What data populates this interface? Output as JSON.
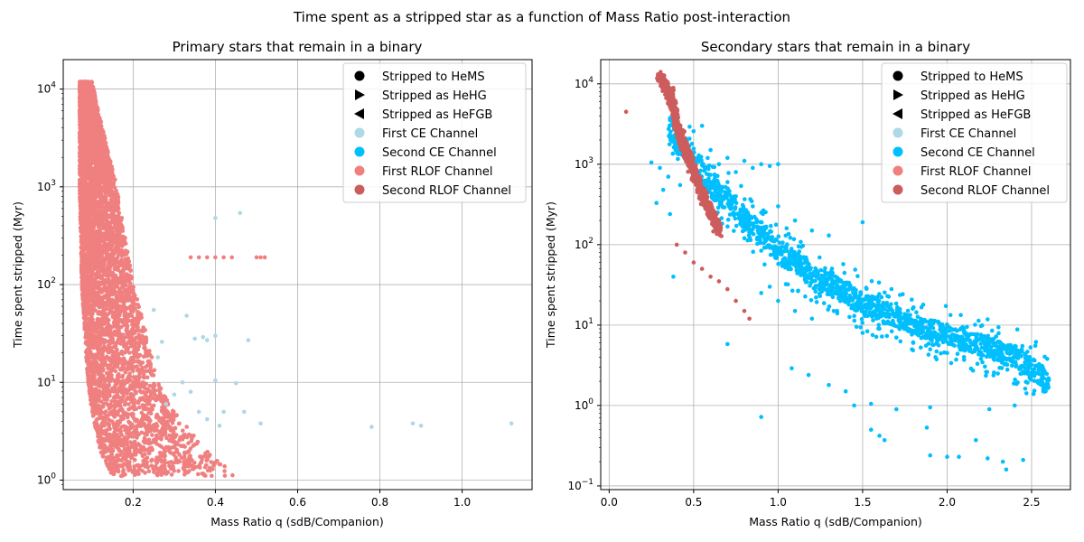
{
  "figure": {
    "suptitle": "Time spent as a stripped star as a function of Mass Ratio post-interaction"
  },
  "colors": {
    "first_ce": "#add8e6",
    "second_ce": "#00bfff",
    "first_rlof": "#f08080",
    "second_rlof": "#cd5c5c",
    "grid": "#b0b0b0",
    "legend_border": "#cccccc"
  },
  "legend": {
    "entries": [
      {
        "label": "Stripped to HeMS",
        "marker": "circle",
        "color": "#000000"
      },
      {
        "label": "Stripped as HeHG",
        "marker": "triangle-right",
        "color": "#000000"
      },
      {
        "label": "Stripped as HeFGB",
        "marker": "triangle-left",
        "color": "#000000"
      },
      {
        "label": "First CE Channel",
        "marker": "circle",
        "color": "#add8e6"
      },
      {
        "label": "Second CE Channel",
        "marker": "circle",
        "color": "#00bfff"
      },
      {
        "label": "First RLOF Channel",
        "marker": "circle",
        "color": "#f08080"
      },
      {
        "label": "Second RLOF Channel",
        "marker": "circle",
        "color": "#cd5c5c"
      }
    ],
    "placement": "top-right"
  },
  "chart_data": [
    {
      "type": "scatter",
      "title": "Primary stars that remain in a binary",
      "xlabel": "Mass Ratio q (sdB/Companion)",
      "ylabel": "Time spent stripped (Myr)",
      "xscale": "linear",
      "yscale": "log",
      "xlim": [
        0.03,
        1.17
      ],
      "ylim": [
        0.8,
        20000
      ],
      "xticks": [
        0.2,
        0.4,
        0.6,
        0.8,
        1.0
      ],
      "xtick_labels": [
        "0.2",
        "0.4",
        "0.6",
        "0.8",
        "1.0"
      ],
      "yticks": [
        1,
        10,
        100,
        1000,
        10000
      ],
      "ytick_labels": [
        "10^0",
        "10^1",
        "10^2",
        "10^3",
        "10^4"
      ],
      "grid": true,
      "series": [
        {
          "name": "First RLOF Channel",
          "color": "#f08080",
          "band": {
            "note": "dense cloud of several thousand points",
            "y_range": [
              1.1,
              12000
            ],
            "q_at_y": [
              [
                1.1,
                0.15,
                0.45
              ],
              [
                2,
                0.12,
                0.38
              ],
              [
                5,
                0.1,
                0.3
              ],
              [
                10,
                0.09,
                0.26
              ],
              [
                50,
                0.08,
                0.22
              ],
              [
                100,
                0.075,
                0.2
              ],
              [
                1000,
                0.07,
                0.16
              ],
              [
                5000,
                0.07,
                0.12
              ],
              [
                12000,
                0.07,
                0.1
              ]
            ]
          },
          "points": [
            [
              0.34,
              190
            ],
            [
              0.36,
              190
            ],
            [
              0.38,
              190
            ],
            [
              0.4,
              190
            ],
            [
              0.42,
              190
            ],
            [
              0.44,
              190
            ],
            [
              0.5,
              190
            ],
            [
              0.51,
              190
            ],
            [
              0.52,
              190
            ]
          ]
        },
        {
          "name": "First CE Channel",
          "color": "#add8e6",
          "points": [
            [
              0.4,
              480
            ],
            [
              0.46,
              540
            ],
            [
              0.33,
              48
            ],
            [
              0.35,
              28
            ],
            [
              0.37,
              29
            ],
            [
              0.38,
              27
            ],
            [
              0.4,
              30
            ],
            [
              0.48,
              27
            ],
            [
              0.32,
              10
            ],
            [
              0.4,
              10.5
            ],
            [
              0.45,
              9.8
            ],
            [
              0.3,
              7.5
            ],
            [
              0.34,
              8
            ],
            [
              0.36,
              5
            ],
            [
              0.38,
              4.2
            ],
            [
              0.41,
              3.6
            ],
            [
              0.42,
              5
            ],
            [
              0.47,
              5
            ],
            [
              0.51,
              3.8
            ],
            [
              0.78,
              3.5
            ],
            [
              0.88,
              3.8
            ],
            [
              0.9,
              3.6
            ],
            [
              1.12,
              3.8
            ],
            [
              0.28,
              6
            ],
            [
              0.26,
              18
            ],
            [
              0.27,
              26
            ],
            [
              0.25,
              55
            ]
          ]
        }
      ]
    },
    {
      "type": "scatter",
      "title": "Secondary stars that remain in a binary",
      "xlabel": "Mass Ratio q (sdB/Companion)",
      "ylabel": "Time spent stripped (Myr)",
      "xscale": "linear",
      "yscale": "log",
      "xlim": [
        -0.05,
        2.73
      ],
      "ylim": [
        0.09,
        20000
      ],
      "xticks": [
        0.0,
        0.5,
        1.0,
        1.5,
        2.0,
        2.5
      ],
      "xtick_labels": [
        "0.0",
        "0.5",
        "1.0",
        "1.5",
        "2.0",
        "2.5"
      ],
      "yticks": [
        0.1,
        1,
        10,
        100,
        1000,
        10000
      ],
      "ytick_labels": [
        "10^-1",
        "10^0",
        "10^1",
        "10^2",
        "10^3",
        "10^4"
      ],
      "grid": true,
      "series": [
        {
          "name": "Second CE Channel",
          "color": "#00bfff",
          "band": {
            "note": "main track falling from ~1000 Myr at q~0.4 to ~2 Myr at q~2.6",
            "track": [
              [
                0.35,
                3000
              ],
              [
                0.45,
                1500
              ],
              [
                0.6,
                500
              ],
              [
                0.8,
                200
              ],
              [
                1.0,
                80
              ],
              [
                1.2,
                40
              ],
              [
                1.5,
                18
              ],
              [
                1.8,
                10
              ],
              [
                2.1,
                6.5
              ],
              [
                2.4,
                4
              ],
              [
                2.6,
                1.8
              ]
            ]
          },
          "points": [
            [
              0.25,
              1050
            ],
            [
              0.3,
              900
            ],
            [
              0.35,
              700
            ],
            [
              0.42,
              550
            ],
            [
              0.32,
              480
            ],
            [
              0.28,
              330
            ],
            [
              0.36,
              240
            ],
            [
              0.38,
              40
            ],
            [
              0.55,
              3000
            ],
            [
              0.6,
              1500
            ],
            [
              0.65,
              1000
            ],
            [
              0.7,
              1200
            ],
            [
              0.75,
              800
            ],
            [
              0.8,
              1100
            ],
            [
              0.85,
              900
            ],
            [
              0.9,
              1000
            ],
            [
              0.95,
              950
            ],
            [
              1.0,
              1000
            ],
            [
              0.7,
              600
            ],
            [
              0.75,
              400
            ],
            [
              0.85,
              300
            ],
            [
              0.9,
              250
            ],
            [
              1.0,
              300
            ],
            [
              1.05,
              160
            ],
            [
              1.1,
              200
            ],
            [
              1.2,
              150
            ],
            [
              1.3,
              130
            ],
            [
              1.5,
              190
            ],
            [
              0.9,
              25
            ],
            [
              0.95,
              30
            ],
            [
              1.0,
              20
            ],
            [
              1.1,
              15
            ],
            [
              1.2,
              12
            ],
            [
              1.35,
              14
            ],
            [
              1.45,
              13
            ],
            [
              1.5,
              8
            ],
            [
              1.6,
              9
            ],
            [
              1.7,
              7
            ],
            [
              1.8,
              6
            ],
            [
              1.9,
              5
            ],
            [
              2.0,
              4.5
            ],
            [
              2.1,
              4
            ],
            [
              2.2,
              3.8
            ],
            [
              2.3,
              2.5
            ],
            [
              2.5,
              3.2
            ],
            [
              2.6,
              1.7
            ],
            [
              0.7,
              5.8
            ],
            [
              1.08,
              2.9
            ],
            [
              1.18,
              2.4
            ],
            [
              1.3,
              1.8
            ],
            [
              1.4,
              1.5
            ],
            [
              1.45,
              1.0
            ],
            [
              1.55,
              1.05
            ],
            [
              1.7,
              0.9
            ],
            [
              1.9,
              0.95
            ],
            [
              2.25,
              0.9
            ],
            [
              2.4,
              1.0
            ],
            [
              0.9,
              0.72
            ],
            [
              1.55,
              0.5
            ],
            [
              1.6,
              0.42
            ],
            [
              1.63,
              0.37
            ],
            [
              1.88,
              0.53
            ],
            [
              1.9,
              0.24
            ],
            [
              2.0,
              0.23
            ],
            [
              2.07,
              0.23
            ],
            [
              2.17,
              0.37
            ],
            [
              2.24,
              0.22
            ],
            [
              2.33,
              0.2
            ],
            [
              2.35,
              0.16
            ],
            [
              2.45,
              0.21
            ]
          ]
        },
        {
          "name": "Second RLOF Channel",
          "color": "#cd5c5c",
          "band": {
            "note": "dense narrow track",
            "track": [
              [
                0.3,
                12000
              ],
              [
                0.35,
                8000
              ],
              [
                0.4,
                3000
              ],
              [
                0.45,
                1500
              ],
              [
                0.5,
                800
              ],
              [
                0.55,
                400
              ],
              [
                0.6,
                250
              ],
              [
                0.65,
                150
              ]
            ]
          },
          "points": [
            [
              0.1,
              4500
            ],
            [
              0.4,
              100
            ],
            [
              0.45,
              80
            ],
            [
              0.5,
              60
            ],
            [
              0.55,
              50
            ],
            [
              0.6,
              40
            ],
            [
              0.65,
              35
            ],
            [
              0.7,
              28
            ],
            [
              0.75,
              20
            ],
            [
              0.8,
              15
            ],
            [
              0.83,
              12
            ]
          ]
        }
      ]
    }
  ]
}
